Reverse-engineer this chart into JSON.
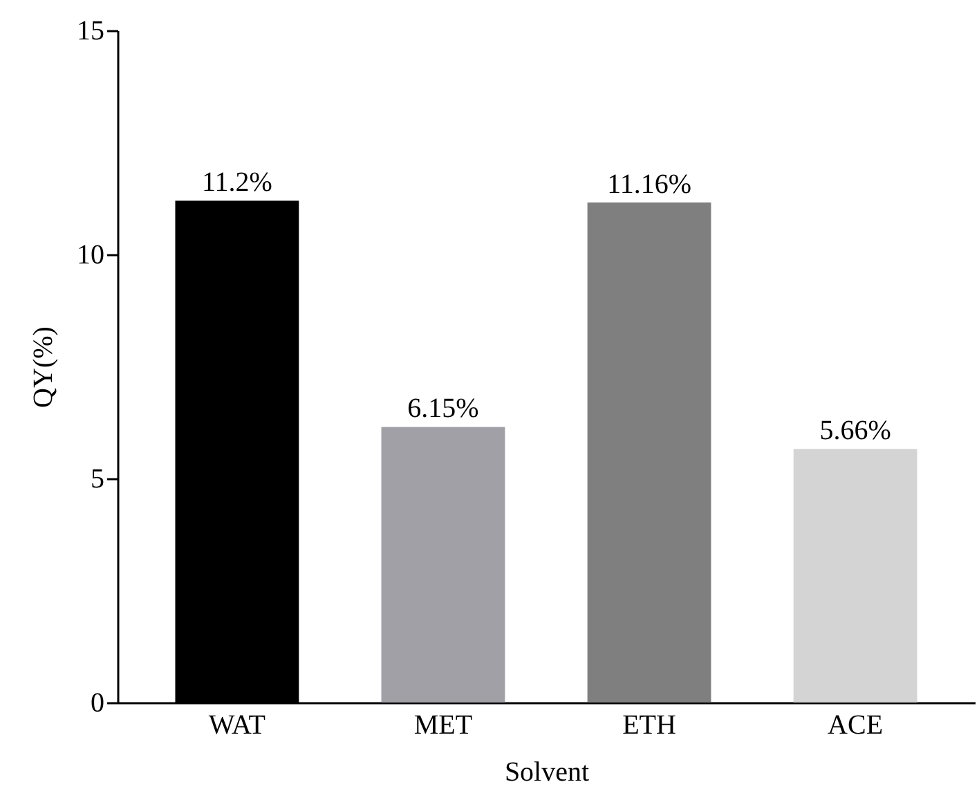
{
  "chart_data": {
    "type": "bar",
    "xlabel": "Solvent",
    "ylabel": "QY(%)",
    "categories": [
      "WAT",
      "MET",
      "ETH",
      "ACE"
    ],
    "values": [
      11.2,
      6.15,
      11.16,
      5.66
    ],
    "colors": [
      "#000000",
      "#a1a0a6",
      "#7f7f7f",
      "#d4d4d4"
    ],
    "value_labels": [
      "11.2%",
      "6.15%",
      "11.16%",
      "5.66%"
    ],
    "ylim": [
      0,
      15
    ],
    "yticks": [
      0,
      5,
      10,
      15
    ],
    "grid": false
  }
}
